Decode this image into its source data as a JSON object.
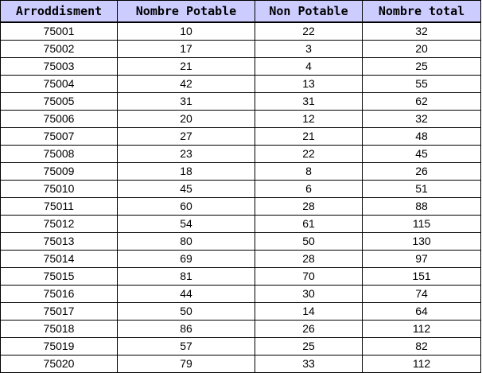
{
  "table": {
    "headers": [
      "Arroddisment",
      "Nombre Potable",
      "Non Potable",
      "Nombre total"
    ],
    "rows": [
      [
        "75001",
        "10",
        "22",
        "32"
      ],
      [
        "75002",
        "17",
        "3",
        "20"
      ],
      [
        "75003",
        "21",
        "4",
        "25"
      ],
      [
        "75004",
        "42",
        "13",
        "55"
      ],
      [
        "75005",
        "31",
        "31",
        "62"
      ],
      [
        "75006",
        "20",
        "12",
        "32"
      ],
      [
        "75007",
        "27",
        "21",
        "48"
      ],
      [
        "75008",
        "23",
        "22",
        "45"
      ],
      [
        "75009",
        "18",
        "8",
        "26"
      ],
      [
        "75010",
        "45",
        "6",
        "51"
      ],
      [
        "75011",
        "60",
        "28",
        "88"
      ],
      [
        "75012",
        "54",
        "61",
        "115"
      ],
      [
        "75013",
        "80",
        "50",
        "130"
      ],
      [
        "75014",
        "69",
        "28",
        "97"
      ],
      [
        "75015",
        "81",
        "70",
        "151"
      ],
      [
        "75016",
        "44",
        "30",
        "74"
      ],
      [
        "75017",
        "50",
        "14",
        "64"
      ],
      [
        "75018",
        "86",
        "26",
        "112"
      ],
      [
        "75019",
        "57",
        "25",
        "82"
      ],
      [
        "75020",
        "79",
        "33",
        "112"
      ]
    ]
  },
  "colors": {
    "header_background": "#ccccff",
    "border": "#000000"
  }
}
